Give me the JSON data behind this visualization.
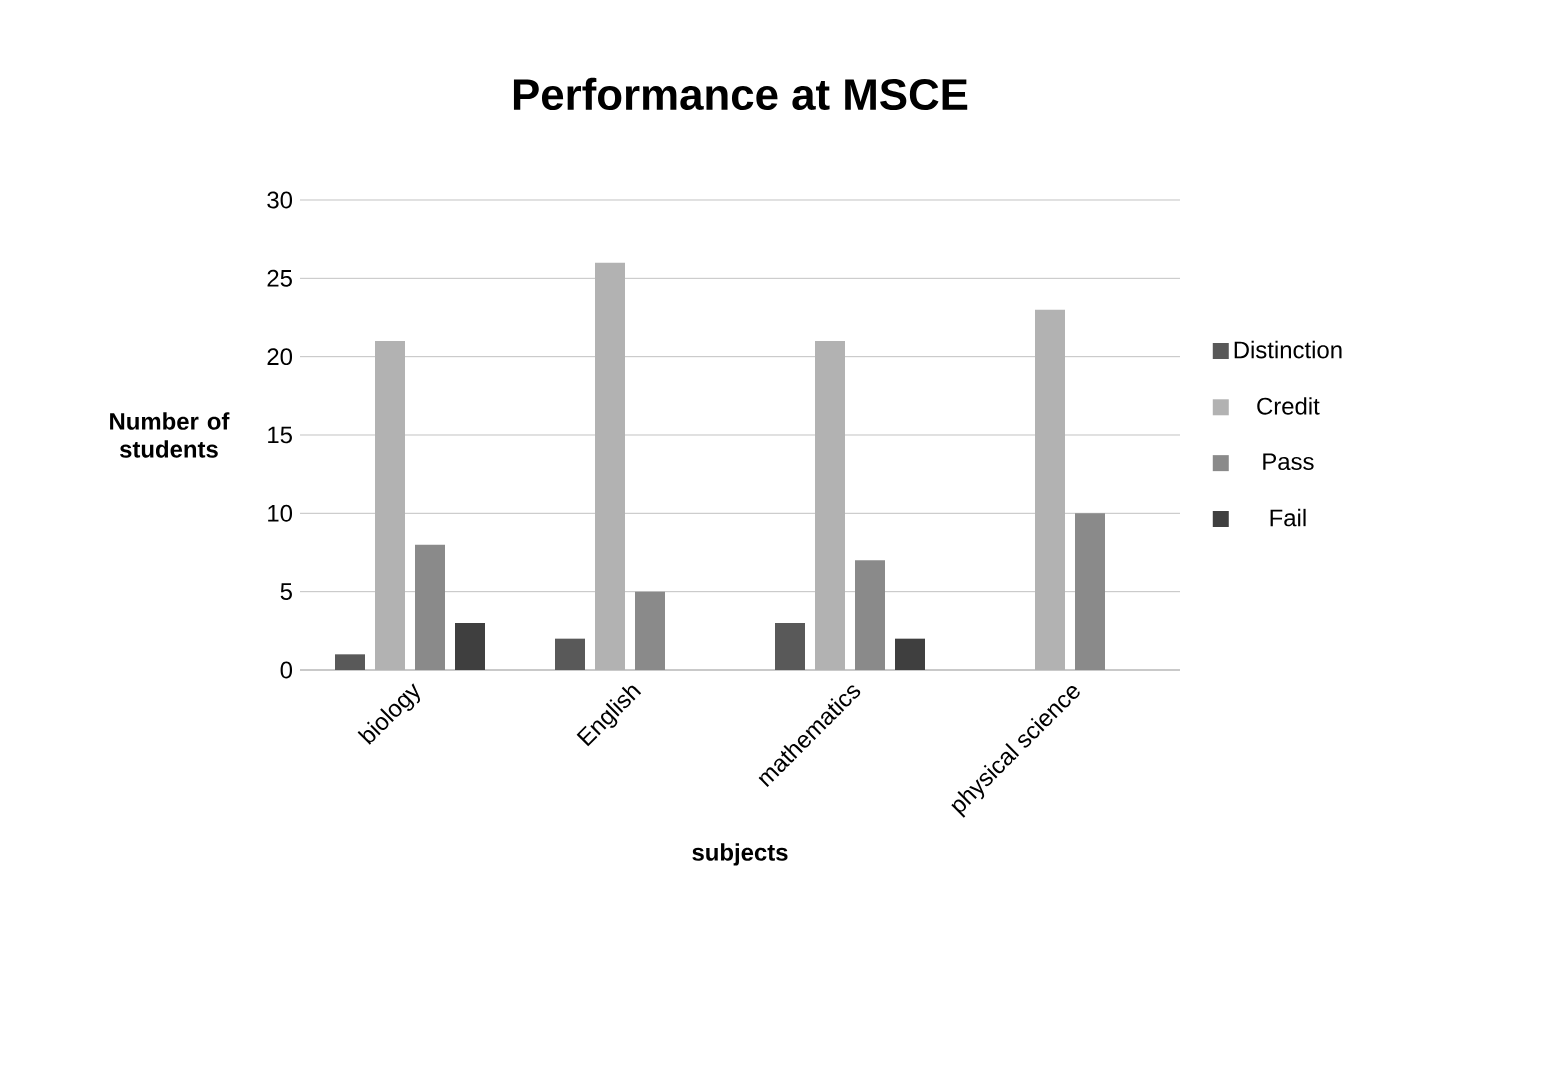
{
  "chart_data": {
    "type": "bar",
    "title": "Performance at MSCE",
    "xlabel": "subjects",
    "ylabel": "Number of students",
    "categories": [
      "biology",
      "English",
      "mathematics",
      "physical science"
    ],
    "series": [
      {
        "name": "Distinction",
        "color": "#595959",
        "values": [
          1,
          2,
          3,
          null
        ]
      },
      {
        "name": "Credit",
        "color": "#b2b2b2",
        "values": [
          21,
          26,
          21,
          23
        ]
      },
      {
        "name": "Pass",
        "color": "#8a8a8a",
        "values": [
          8,
          5,
          7,
          10
        ]
      },
      {
        "name": "Fail",
        "color": "#3f3f3f",
        "values": [
          3,
          null,
          2,
          null
        ]
      }
    ],
    "ylim": [
      0,
      30
    ],
    "yticks": [
      0,
      5,
      10,
      15,
      20,
      25,
      30
    ],
    "grid": "y",
    "legend": "right"
  }
}
